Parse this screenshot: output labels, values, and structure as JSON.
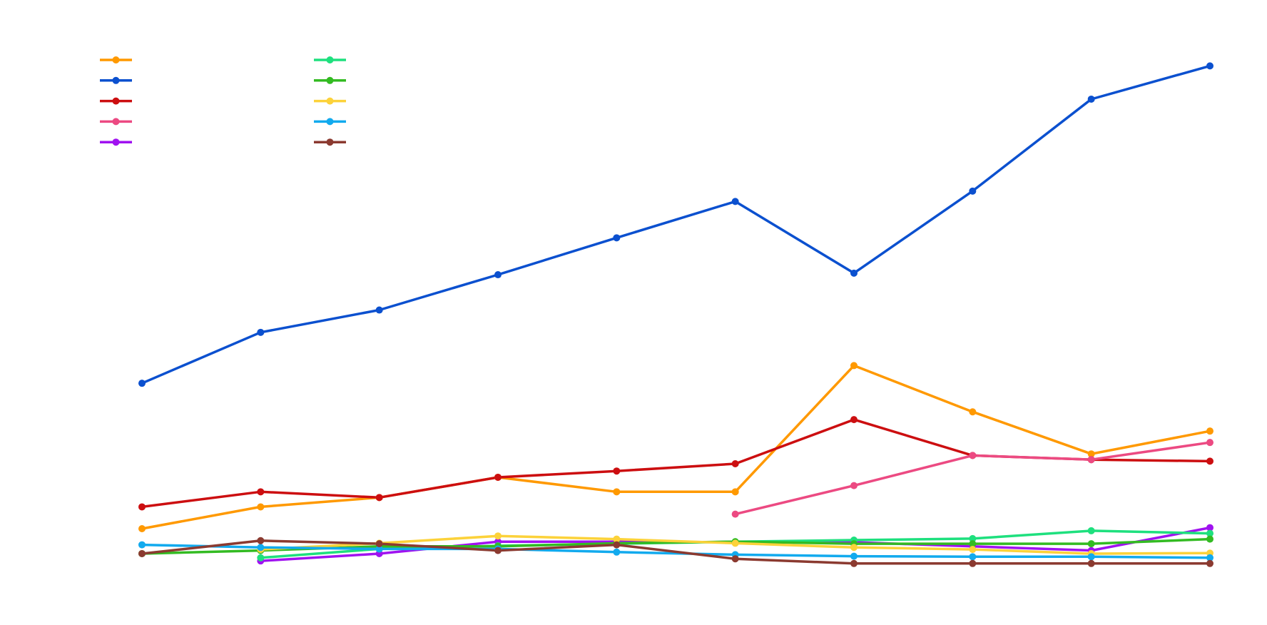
{
  "chart_data": {
    "type": "line",
    "categories": [
      null,
      null,
      null,
      null,
      null,
      null,
      null,
      null,
      null,
      null
    ],
    "ylim": [
      0,
      100
    ],
    "legend": "top-left",
    "series": [
      {
        "color": "#ff9900",
        "values": [
          9.2,
          13.4,
          15.2,
          19.1,
          16.3,
          16.3,
          40.6,
          31.7,
          23.6,
          28.0
        ]
      },
      {
        "color": "#0b50cf",
        "values": [
          37.2,
          47.0,
          51.3,
          58.1,
          65.2,
          72.2,
          58.4,
          74.2,
          91.9,
          98.3
        ]
      },
      {
        "color": "#cc0e10",
        "values": [
          13.4,
          16.3,
          15.2,
          19.1,
          20.3,
          21.7,
          30.2,
          23.3,
          22.5,
          22.2
        ]
      },
      {
        "color": "#ec4a82",
        "values": [
          null,
          null,
          null,
          null,
          null,
          12.0,
          17.5,
          23.3,
          22.5,
          25.8
        ]
      },
      {
        "color": "#a012f0",
        "values": [
          null,
          3.0,
          4.4,
          6.7,
          6.7,
          6.6,
          6.6,
          5.8,
          5.0,
          9.4
        ]
      },
      {
        "color": "#1ee07e",
        "values": [
          null,
          3.6,
          5.3,
          5.9,
          6.3,
          6.7,
          7.0,
          7.3,
          8.8,
          8.3
        ]
      },
      {
        "color": "#33bb22",
        "values": [
          4.4,
          5.0,
          5.8,
          5.8,
          6.4,
          6.7,
          6.3,
          6.3,
          6.3,
          7.2
        ]
      },
      {
        "color": "#fcd23a",
        "values": [
          null,
          5.2,
          6.4,
          7.8,
          7.2,
          6.4,
          5.6,
          5.2,
          4.4,
          4.5
        ]
      },
      {
        "color": "#12aaee",
        "values": [
          6.1,
          5.6,
          5.3,
          5.3,
          4.7,
          4.2,
          3.9,
          3.8,
          3.8,
          3.6
        ]
      },
      {
        "color": "#8b3a30",
        "values": [
          4.4,
          6.9,
          6.3,
          5.0,
          6.1,
          3.4,
          2.5,
          2.5,
          2.5,
          2.5
        ]
      }
    ]
  }
}
